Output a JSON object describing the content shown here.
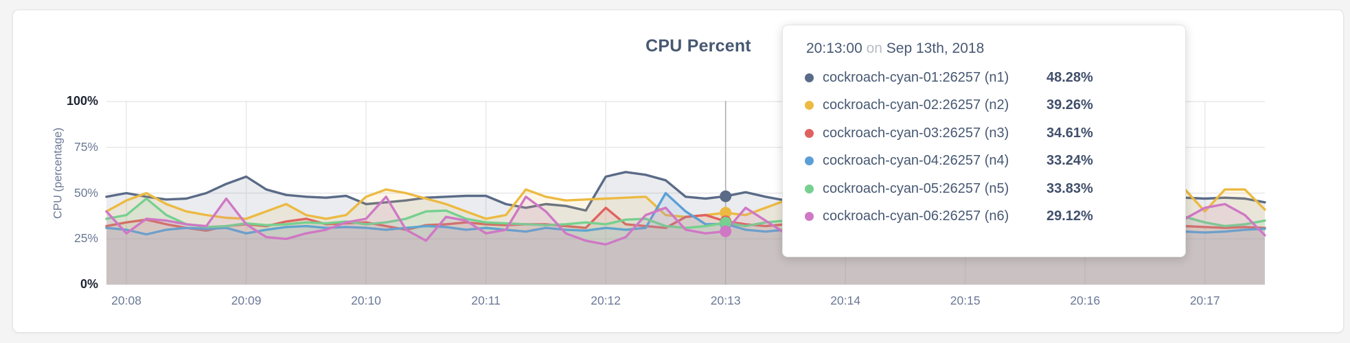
{
  "chart": {
    "title": "CPU Percent",
    "y_axis": {
      "label": "CPU (percentage)",
      "ticks": [
        {
          "label": "100%",
          "value": 100,
          "bold": true
        },
        {
          "label": "75%",
          "value": 75,
          "bold": false
        },
        {
          "label": "50%",
          "value": 50,
          "bold": false
        },
        {
          "label": "25%",
          "value": 25,
          "bold": false
        },
        {
          "label": "0%",
          "value": 0,
          "bold": true
        }
      ]
    },
    "x_axis": {
      "ticks": [
        "20:08",
        "20:09",
        "20:10",
        "20:11",
        "20:12",
        "20:13",
        "20:14",
        "20:15",
        "20:16",
        "20:17"
      ]
    }
  },
  "tooltip": {
    "time": "20:13:00",
    "on_word": "on",
    "date": "Sep 13th, 2018",
    "rows": [
      {
        "label": "cockroach-cyan-01:26257 (n1)",
        "value": "48.28%",
        "color": "#5a6b87"
      },
      {
        "label": "cockroach-cyan-02:26257 (n2)",
        "value": "39.26%",
        "color": "#ecba42"
      },
      {
        "label": "cockroach-cyan-03:26257 (n3)",
        "value": "34.61%",
        "color": "#e0625f"
      },
      {
        "label": "cockroach-cyan-04:26257 (n4)",
        "value": "33.24%",
        "color": "#5c9fd6"
      },
      {
        "label": "cockroach-cyan-05:26257 (n5)",
        "value": "33.83%",
        "color": "#76d08f"
      },
      {
        "label": "cockroach-cyan-06:26257 (n6)",
        "value": "29.12%",
        "color": "#cf78c5"
      }
    ]
  },
  "chart_data": {
    "type": "line",
    "title": "CPU Percent",
    "xlabel": "",
    "ylabel": "CPU (percentage)",
    "ylim": [
      0,
      100
    ],
    "y_tick_values": [
      100,
      75,
      50,
      25,
      0
    ],
    "x_tick_labels": [
      "20:08",
      "20:09",
      "20:10",
      "20:11",
      "20:12",
      "20:13",
      "20:14",
      "20:15",
      "20:16",
      "20:17"
    ],
    "x_start": "20:07:50",
    "x_end": "20:17:30",
    "x_step_seconds": 10,
    "grid": true,
    "legend": "tooltip-only",
    "area_fill_opacity": 0.13,
    "hover": {
      "time": "20:13:00",
      "date": "Sep 13th, 2018",
      "index": 31,
      "values": [
        48.28,
        39.26,
        34.61,
        33.24,
        33.83,
        29.12
      ]
    },
    "series": [
      {
        "name": "cockroach-cyan-01:26257 (n1)",
        "color": "#5a6b87",
        "values": [
          48,
          50,
          48,
          46.5,
          47,
          50,
          55,
          59,
          52,
          49,
          48,
          47.5,
          48.5,
          44,
          45,
          46,
          47.5,
          48,
          48.5,
          48.5,
          44,
          42,
          44,
          43,
          40.5,
          59,
          61.5,
          60,
          57,
          48,
          47,
          48.28,
          50.5,
          48,
          46,
          47,
          45,
          48,
          49,
          47,
          46,
          48,
          47,
          45,
          46,
          48,
          47,
          46.5,
          47,
          48,
          47.5,
          47,
          47.5,
          48,
          47.5,
          47,
          47.5,
          47,
          45
        ]
      },
      {
        "name": "cockroach-cyan-02:26257 (n2)",
        "color": "#ecba42",
        "values": [
          40,
          46,
          50,
          44,
          40,
          38,
          36.5,
          36,
          40,
          44,
          38,
          36,
          38,
          48,
          52,
          50,
          47,
          44,
          40,
          36,
          38,
          52,
          48,
          46,
          46.5,
          47,
          47.5,
          48,
          38,
          37,
          38,
          39.26,
          38,
          42,
          46,
          44,
          40,
          42,
          44,
          41,
          39,
          42,
          45,
          43,
          40,
          42,
          44,
          41,
          43,
          45,
          42,
          44,
          46,
          45,
          52,
          40,
          52,
          52,
          41
        ]
      },
      {
        "name": "cockroach-cyan-03:26257 (n3)",
        "color": "#e0625f",
        "values": [
          32,
          34,
          35.5,
          33,
          31,
          29.5,
          32,
          33,
          32,
          34.5,
          36,
          33,
          33.5,
          34,
          32,
          30,
          32.5,
          33,
          34,
          33,
          32.5,
          33,
          33,
          32,
          31,
          42,
          33,
          32,
          31,
          37,
          38,
          34.61,
          33,
          32,
          33,
          34,
          32,
          33,
          34,
          32.5,
          33,
          32,
          33.5,
          33,
          32,
          33,
          34,
          32,
          33,
          32.5,
          33,
          32,
          33,
          32.5,
          32,
          31.5,
          31,
          31.5,
          31
        ]
      },
      {
        "name": "cockroach-cyan-04:26257 (n4)",
        "color": "#5c9fd6",
        "values": [
          31,
          30,
          27.5,
          30,
          31,
          30.5,
          31,
          28,
          30,
          31.5,
          32,
          31,
          31.5,
          31,
          30,
          31,
          32,
          31.5,
          30,
          31,
          30,
          29,
          31,
          30,
          29.5,
          31,
          30,
          31,
          50,
          40,
          33,
          33.24,
          30,
          29,
          30,
          31,
          30,
          29.5,
          30,
          31,
          30,
          29,
          30,
          31,
          30.5,
          30,
          29,
          30,
          30.5,
          30,
          29.5,
          30,
          29,
          28.5,
          29,
          28.5,
          29,
          30,
          30.5
        ]
      },
      {
        "name": "cockroach-cyan-05:26257 (n5)",
        "color": "#76d08f",
        "values": [
          36,
          38,
          47,
          38,
          33,
          31.5,
          32,
          33.5,
          32.5,
          33,
          34,
          33.5,
          34.5,
          33,
          34,
          36,
          40,
          40.5,
          36,
          34,
          33.5,
          33,
          32.5,
          33,
          34,
          33,
          35.5,
          36,
          32,
          31,
          32,
          33.83,
          32,
          34,
          35,
          33,
          34,
          35,
          34,
          33,
          34.5,
          34,
          33,
          34,
          35,
          34,
          33.5,
          34,
          35,
          34,
          36,
          38,
          42,
          40,
          37,
          34,
          32,
          33,
          35
        ]
      },
      {
        "name": "cockroach-cyan-06:26257 (n6)",
        "color": "#cf78c5",
        "values": [
          40,
          28,
          36,
          35,
          33,
          32,
          47,
          33,
          26,
          25,
          28,
          30,
          34,
          36,
          48,
          30,
          24,
          37,
          35,
          28,
          30,
          48,
          40,
          28,
          24,
          22,
          26,
          38,
          42,
          30,
          28,
          29.12,
          42,
          35,
          28,
          30,
          32,
          29,
          28,
          30,
          29,
          28,
          30,
          31,
          29,
          28,
          30,
          29,
          28,
          27,
          26,
          27,
          28,
          30,
          36,
          42,
          44,
          38,
          27
        ]
      }
    ]
  }
}
